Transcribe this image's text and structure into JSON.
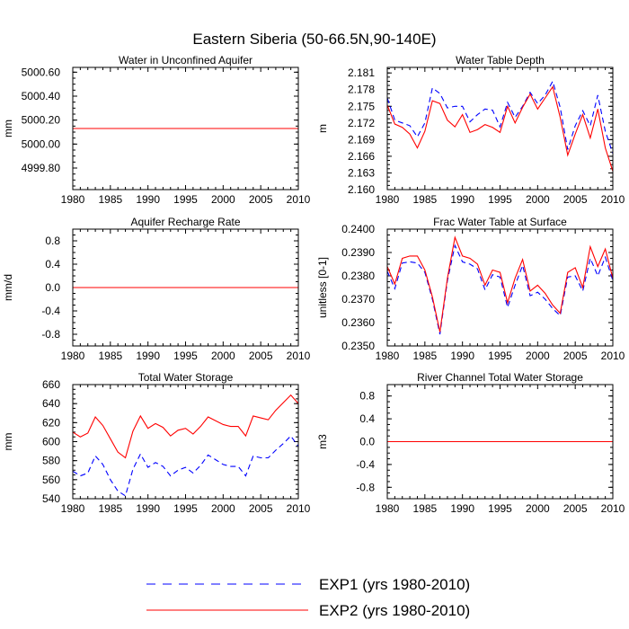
{
  "title": "Eastern Siberia (50-66.5N,90-140E)",
  "legend": {
    "placement": "bottom-center",
    "entries": [
      {
        "label": "EXP1 (yrs 1980-2010)",
        "color": "#0000ff",
        "dash": "dashed"
      },
      {
        "label": "EXP2 (yrs 1980-2010)",
        "color": "#ff0000",
        "dash": "solid"
      }
    ]
  },
  "chart_data": [
    {
      "type": "line",
      "title": "Water in Unconfined Aquifer",
      "ylabel": "mm",
      "xlabel": "",
      "xlim": [
        1980,
        2010
      ],
      "ylim": [
        4999.62,
        5000.64
      ],
      "xticks": [
        1980,
        1985,
        1990,
        1995,
        2000,
        2005,
        2010
      ],
      "xtick_labels": [
        "1980",
        "1985",
        "1990",
        "1995",
        "2000",
        "2005",
        "2010"
      ],
      "yticks": [
        4999.8,
        5000.0,
        5000.2,
        5000.4,
        5000.6
      ],
      "ytick_labels": [
        "4999.80",
        "5000.00",
        "5000.20",
        "5000.40",
        "5000.60"
      ],
      "x_start": 1980,
      "series": [
        {
          "name": "EXP1 (yrs 1980-2010)",
          "values": [
            5000.13,
            5000.13,
            5000.13,
            5000.13,
            5000.13,
            5000.13,
            5000.13,
            5000.13,
            5000.13,
            5000.13,
            5000.13,
            5000.13,
            5000.13,
            5000.13,
            5000.13,
            5000.13,
            5000.13,
            5000.13,
            5000.13,
            5000.13,
            5000.13,
            5000.13,
            5000.13,
            5000.13,
            5000.13,
            5000.13,
            5000.13,
            5000.13,
            5000.13,
            5000.13,
            5000.13
          ]
        },
        {
          "name": "EXP2 (yrs 1980-2010)",
          "values": [
            5000.13,
            5000.13,
            5000.13,
            5000.13,
            5000.13,
            5000.13,
            5000.13,
            5000.13,
            5000.13,
            5000.13,
            5000.13,
            5000.13,
            5000.13,
            5000.13,
            5000.13,
            5000.13,
            5000.13,
            5000.13,
            5000.13,
            5000.13,
            5000.13,
            5000.13,
            5000.13,
            5000.13,
            5000.13,
            5000.13,
            5000.13,
            5000.13,
            5000.13,
            5000.13,
            5000.13
          ]
        }
      ]
    },
    {
      "type": "line",
      "title": "Water Table Depth",
      "ylabel": "m",
      "xlabel": "",
      "xlim": [
        1980,
        2010
      ],
      "ylim": [
        2.16,
        2.182
      ],
      "xticks": [
        1980,
        1985,
        1990,
        1995,
        2000,
        2005,
        2010
      ],
      "xtick_labels": [
        "1980",
        "1985",
        "1990",
        "1995",
        "2000",
        "2005",
        "2010"
      ],
      "yticks": [
        2.16,
        2.163,
        2.166,
        2.169,
        2.172,
        2.175,
        2.178,
        2.181
      ],
      "ytick_labels": [
        "2.160",
        "2.163",
        "2.166",
        "2.169",
        "2.172",
        "2.175",
        "2.178",
        "2.181"
      ],
      "x_start": 1980,
      "series": [
        {
          "name": "EXP1 (yrs 1980-2010)",
          "values": [
            2.1765,
            2.1725,
            2.172,
            2.1715,
            2.1695,
            2.172,
            2.1783,
            2.1773,
            2.1747,
            2.175,
            2.175,
            2.1722,
            2.1735,
            2.1745,
            2.1743,
            2.1713,
            2.1757,
            2.173,
            2.175,
            2.1775,
            2.1755,
            2.177,
            2.1795,
            2.1748,
            2.1672,
            2.1715,
            2.1742,
            2.1715,
            2.177,
            2.1705,
            2.1665
          ]
        },
        {
          "name": "EXP2 (yrs 1980-2010)",
          "values": [
            2.1752,
            2.1718,
            2.1712,
            2.17,
            2.1675,
            2.1705,
            2.176,
            2.1755,
            2.1725,
            2.1713,
            2.1735,
            2.1703,
            2.1708,
            2.1717,
            2.1712,
            2.1703,
            2.175,
            2.172,
            2.1748,
            2.1772,
            2.1745,
            2.1765,
            2.1785,
            2.173,
            2.1662,
            2.17,
            2.1735,
            2.1693,
            2.1745,
            2.1675,
            2.1633
          ]
        }
      ]
    },
    {
      "type": "line",
      "title": "Aquifer Recharge Rate",
      "ylabel": "mm/d",
      "xlabel": "",
      "xlim": [
        1980,
        2010
      ],
      "ylim": [
        -1.0,
        1.0
      ],
      "xticks": [
        1980,
        1985,
        1990,
        1995,
        2000,
        2005,
        2010
      ],
      "xtick_labels": [
        "1980",
        "1985",
        "1990",
        "1995",
        "2000",
        "2005",
        "2010"
      ],
      "yticks": [
        -0.8,
        -0.4,
        0.0,
        0.4,
        0.8
      ],
      "ytick_labels": [
        "-0.8",
        "-0.4",
        "0.0",
        "0.4",
        "0.8"
      ],
      "x_start": 1980,
      "series": [
        {
          "name": "EXP1 (yrs 1980-2010)",
          "values": [
            0,
            0,
            0,
            0,
            0,
            0,
            0,
            0,
            0,
            0,
            0,
            0,
            0,
            0,
            0,
            0,
            0,
            0,
            0,
            0,
            0,
            0,
            0,
            0,
            0,
            0,
            0,
            0,
            0,
            0,
            0
          ]
        },
        {
          "name": "EXP2 (yrs 1980-2010)",
          "values": [
            0,
            0,
            0,
            0,
            0,
            0,
            0,
            0,
            0,
            0,
            0,
            0,
            0,
            0,
            0,
            0,
            0,
            0,
            0,
            0,
            0,
            0,
            0,
            0,
            0,
            0,
            0,
            0,
            0,
            0,
            0
          ]
        }
      ]
    },
    {
      "type": "line",
      "title": "Frac Water Table at Surface",
      "ylabel": "unitless [0-1]",
      "xlabel": "",
      "xlim": [
        1980,
        2010
      ],
      "ylim": [
        0.235,
        0.24
      ],
      "xticks": [
        1980,
        1985,
        1990,
        1995,
        2000,
        2005,
        2010
      ],
      "xtick_labels": [
        "1980",
        "1985",
        "1990",
        "1995",
        "2000",
        "2005",
        "2010"
      ],
      "yticks": [
        0.235,
        0.236,
        0.237,
        0.238,
        0.239,
        0.24
      ],
      "ytick_labels": [
        "0.2350",
        "0.2360",
        "0.2370",
        "0.2380",
        "0.2390",
        "0.2400"
      ],
      "x_start": 1980,
      "series": [
        {
          "name": "EXP1 (yrs 1980-2010)",
          "values": [
            0.2382,
            0.23745,
            0.23855,
            0.2386,
            0.23855,
            0.23815,
            0.237,
            0.2355,
            0.2378,
            0.2393,
            0.2386,
            0.2385,
            0.2383,
            0.2374,
            0.23805,
            0.23795,
            0.23665,
            0.2376,
            0.23845,
            0.23715,
            0.2373,
            0.237,
            0.2366,
            0.2363,
            0.23795,
            0.238,
            0.23735,
            0.23875,
            0.238,
            0.2388,
            0.2378
          ]
        },
        {
          "name": "EXP2 (yrs 1980-2010)",
          "values": [
            0.2384,
            0.23765,
            0.23875,
            0.23885,
            0.23885,
            0.23825,
            0.2371,
            0.2356,
            0.2379,
            0.23965,
            0.23885,
            0.23875,
            0.2385,
            0.2376,
            0.23825,
            0.23815,
            0.23685,
            0.2379,
            0.2387,
            0.23735,
            0.2376,
            0.23725,
            0.23675,
            0.2364,
            0.23815,
            0.23835,
            0.2375,
            0.23925,
            0.2384,
            0.23915,
            0.2379
          ]
        }
      ]
    },
    {
      "type": "line",
      "title": "Total Water Storage",
      "ylabel": "mm",
      "xlabel": "",
      "xlim": [
        1980,
        2010
      ],
      "ylim": [
        540,
        660
      ],
      "xticks": [
        1980,
        1985,
        1990,
        1995,
        2000,
        2005,
        2010
      ],
      "xtick_labels": [
        "1980",
        "1985",
        "1990",
        "1995",
        "2000",
        "2005",
        "2010"
      ],
      "yticks": [
        540,
        560,
        580,
        600,
        620,
        640,
        660
      ],
      "ytick_labels": [
        "540",
        "560",
        "580",
        "600",
        "620",
        "640",
        "660"
      ],
      "x_start": 1980,
      "series": [
        {
          "name": "EXP1 (yrs 1980-2010)",
          "values": [
            569,
            564,
            567,
            585,
            576,
            560,
            548,
            543,
            571,
            587,
            573,
            578,
            574,
            564,
            570,
            573,
            567,
            575,
            586,
            581,
            576,
            574,
            574,
            564,
            585,
            583,
            583,
            591,
            598,
            606,
            595
          ]
        },
        {
          "name": "EXP2 (yrs 1980-2010)",
          "values": [
            610,
            605,
            609,
            626,
            617,
            603,
            589,
            583,
            611,
            627,
            614,
            619,
            615,
            606,
            612,
            614,
            608,
            616,
            626,
            622,
            618,
            616,
            616,
            606,
            627,
            625,
            623,
            633,
            641,
            649,
            640
          ]
        }
      ]
    },
    {
      "type": "line",
      "title": "River Channel Total Water Storage",
      "ylabel": "m3",
      "xlabel": "",
      "xlim": [
        1980,
        2010
      ],
      "ylim": [
        -1.0,
        1.0
      ],
      "xticks": [
        1980,
        1985,
        1990,
        1995,
        2000,
        2005,
        2010
      ],
      "xtick_labels": [
        "1980",
        "1985",
        "1990",
        "1995",
        "2000",
        "2005",
        "2010"
      ],
      "yticks": [
        -0.8,
        -0.4,
        0.0,
        0.4,
        0.8
      ],
      "ytick_labels": [
        "-0.8",
        "-0.4",
        "0.0",
        "0.4",
        "0.8"
      ],
      "x_start": 1980,
      "series": [
        {
          "name": "EXP1 (yrs 1980-2010)",
          "values": [
            0,
            0,
            0,
            0,
            0,
            0,
            0,
            0,
            0,
            0,
            0,
            0,
            0,
            0,
            0,
            0,
            0,
            0,
            0,
            0,
            0,
            0,
            0,
            0,
            0,
            0,
            0,
            0,
            0,
            0,
            0
          ]
        },
        {
          "name": "EXP2 (yrs 1980-2010)",
          "values": [
            0,
            0,
            0,
            0,
            0,
            0,
            0,
            0,
            0,
            0,
            0,
            0,
            0,
            0,
            0,
            0,
            0,
            0,
            0,
            0,
            0,
            0,
            0,
            0,
            0,
            0,
            0,
            0,
            0,
            0,
            0
          ]
        }
      ]
    }
  ]
}
